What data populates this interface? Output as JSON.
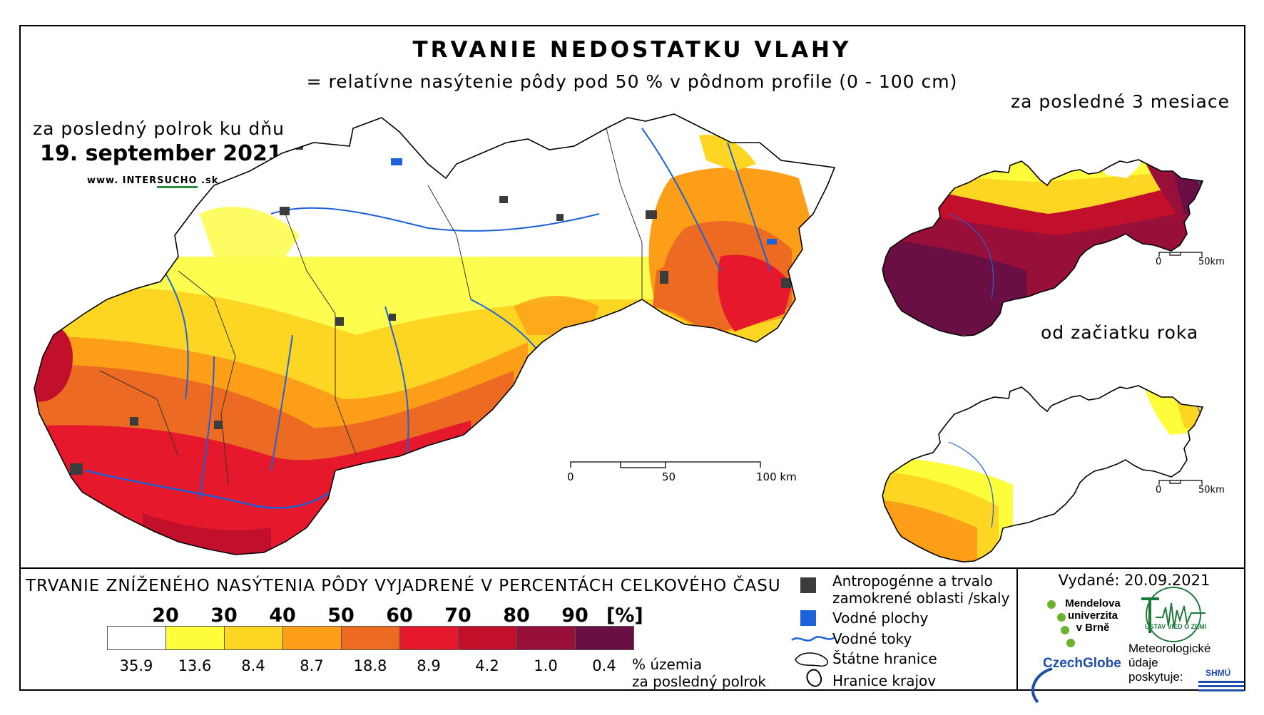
{
  "header": {
    "title": "TRVANIE NEDOSTATKU VLAHY",
    "subtitle": "= relatívne nasýtenie pôdy pod 50 % v pôdnom profile (0 - 100 cm)"
  },
  "main_map": {
    "caption": "za posledný polrok ku dňu",
    "date": "19. september 2021",
    "website": {
      "prefix": "www. INTER",
      "middle": "SUCHO",
      "suffix": " .sk"
    },
    "scale": {
      "start": "0",
      "mid": "50",
      "end": "100 km"
    }
  },
  "inset_3m": {
    "caption": "za posledné 3 mesiace",
    "scale": {
      "start": "0",
      "end": "50km"
    }
  },
  "inset_year": {
    "caption": "od začiatku roka",
    "scale": {
      "start": "0",
      "end": "50km"
    }
  },
  "legend": {
    "title": "TRVANIE ZNÍŽENÉHO NASÝTENIA PÔDY VYJADRENÉ V PERCENTÁCH CELKOVÉHO ČASU",
    "thresholds": [
      "20",
      "30",
      "40",
      "50",
      "60",
      "70",
      "80",
      "90"
    ],
    "unit": "[%]",
    "classes": [
      {
        "color": "#ffffff",
        "share": "35.9"
      },
      {
        "color": "#fdfd3c",
        "share": "13.6"
      },
      {
        "color": "#fcd623",
        "share": "8.4"
      },
      {
        "color": "#fc9e17",
        "share": "8.7"
      },
      {
        "color": "#ec6a22",
        "share": "18.8"
      },
      {
        "color": "#e5192b",
        "share": "8.9"
      },
      {
        "color": "#c2102c",
        "share": "4.2"
      },
      {
        "color": "#980f3a",
        "share": "1.0"
      },
      {
        "color": "#6a0f44",
        "share": "0.4"
      }
    ],
    "share_note_line1": "% územia",
    "share_note_line2": "za posledný polrok"
  },
  "symbols": {
    "anthropogenic_line1": "Antropogénne a trvalo",
    "anthropogenic_line2": "zamokrené oblasti /skaly",
    "water_bodies": "Vodné plochy",
    "rivers": "Vodné toky",
    "state_border": "Štátne hranice",
    "regions": "Hranice krajov"
  },
  "footer": {
    "issued": "Vydané: 20.09.2021",
    "mendel_line1": "Mendelova",
    "mendel_line2": "univerzita",
    "mendel_line3": "v Brně",
    "czechglobe": "CzechGlobe",
    "ustav": "ÚSTAV VIED O ZEMI",
    "met_line1": "Meteorologické",
    "met_line2": "údaje",
    "met_line3": "poskytuje:",
    "shmu": "SHMÚ"
  }
}
